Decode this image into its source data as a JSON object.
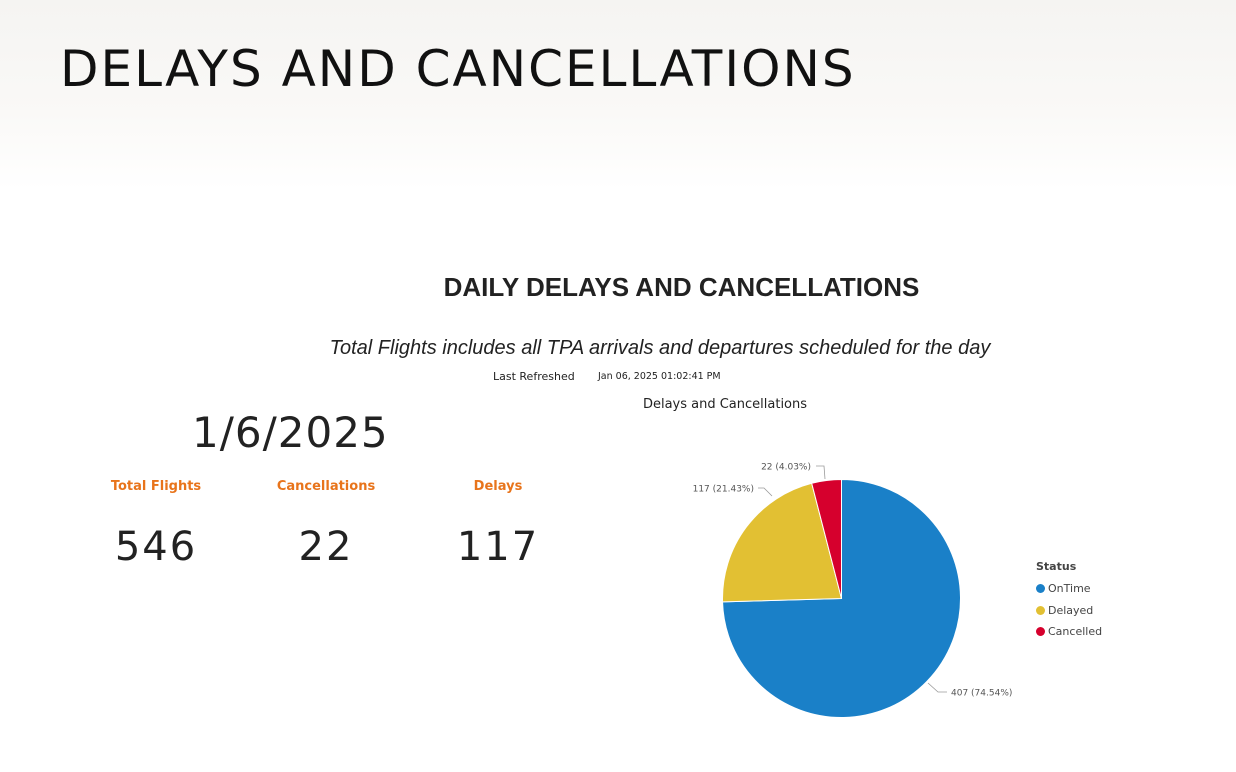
{
  "page": {
    "title": "DELAYS AND CANCELLATIONS"
  },
  "report": {
    "title": "DAILY DELAYS AND CANCELLATIONS",
    "subtitle": "Total Flights includes all TPA arrivals and departures scheduled for the day",
    "last_refreshed_label": "Last Refreshed",
    "last_refreshed_value": "Jan 06, 2025 01:02:41 PM",
    "date": "1/6/2025"
  },
  "kpis": [
    {
      "label": "Total Flights",
      "value": "546"
    },
    {
      "label": "Cancellations",
      "value": "22"
    },
    {
      "label": "Delays",
      "value": "117"
    }
  ],
  "colors": {
    "accent_orange": "#e8741b",
    "ontime": "#1a80c8",
    "delayed": "#e2c033",
    "cancelled": "#d6002d"
  },
  "chart_data": {
    "type": "pie",
    "title": "Delays and Cancellations",
    "legend_title": "Status",
    "legend_position": "right",
    "slices": [
      {
        "name": "OnTime",
        "value": 407,
        "label": "407 (74.54%)",
        "color": "#1a80c8"
      },
      {
        "name": "Delayed",
        "value": 117,
        "label": "117 (21.43%)",
        "color": "#e2c033"
      },
      {
        "name": "Cancelled",
        "value": 22,
        "label": "22 (4.03%)",
        "color": "#d6002d"
      }
    ]
  }
}
